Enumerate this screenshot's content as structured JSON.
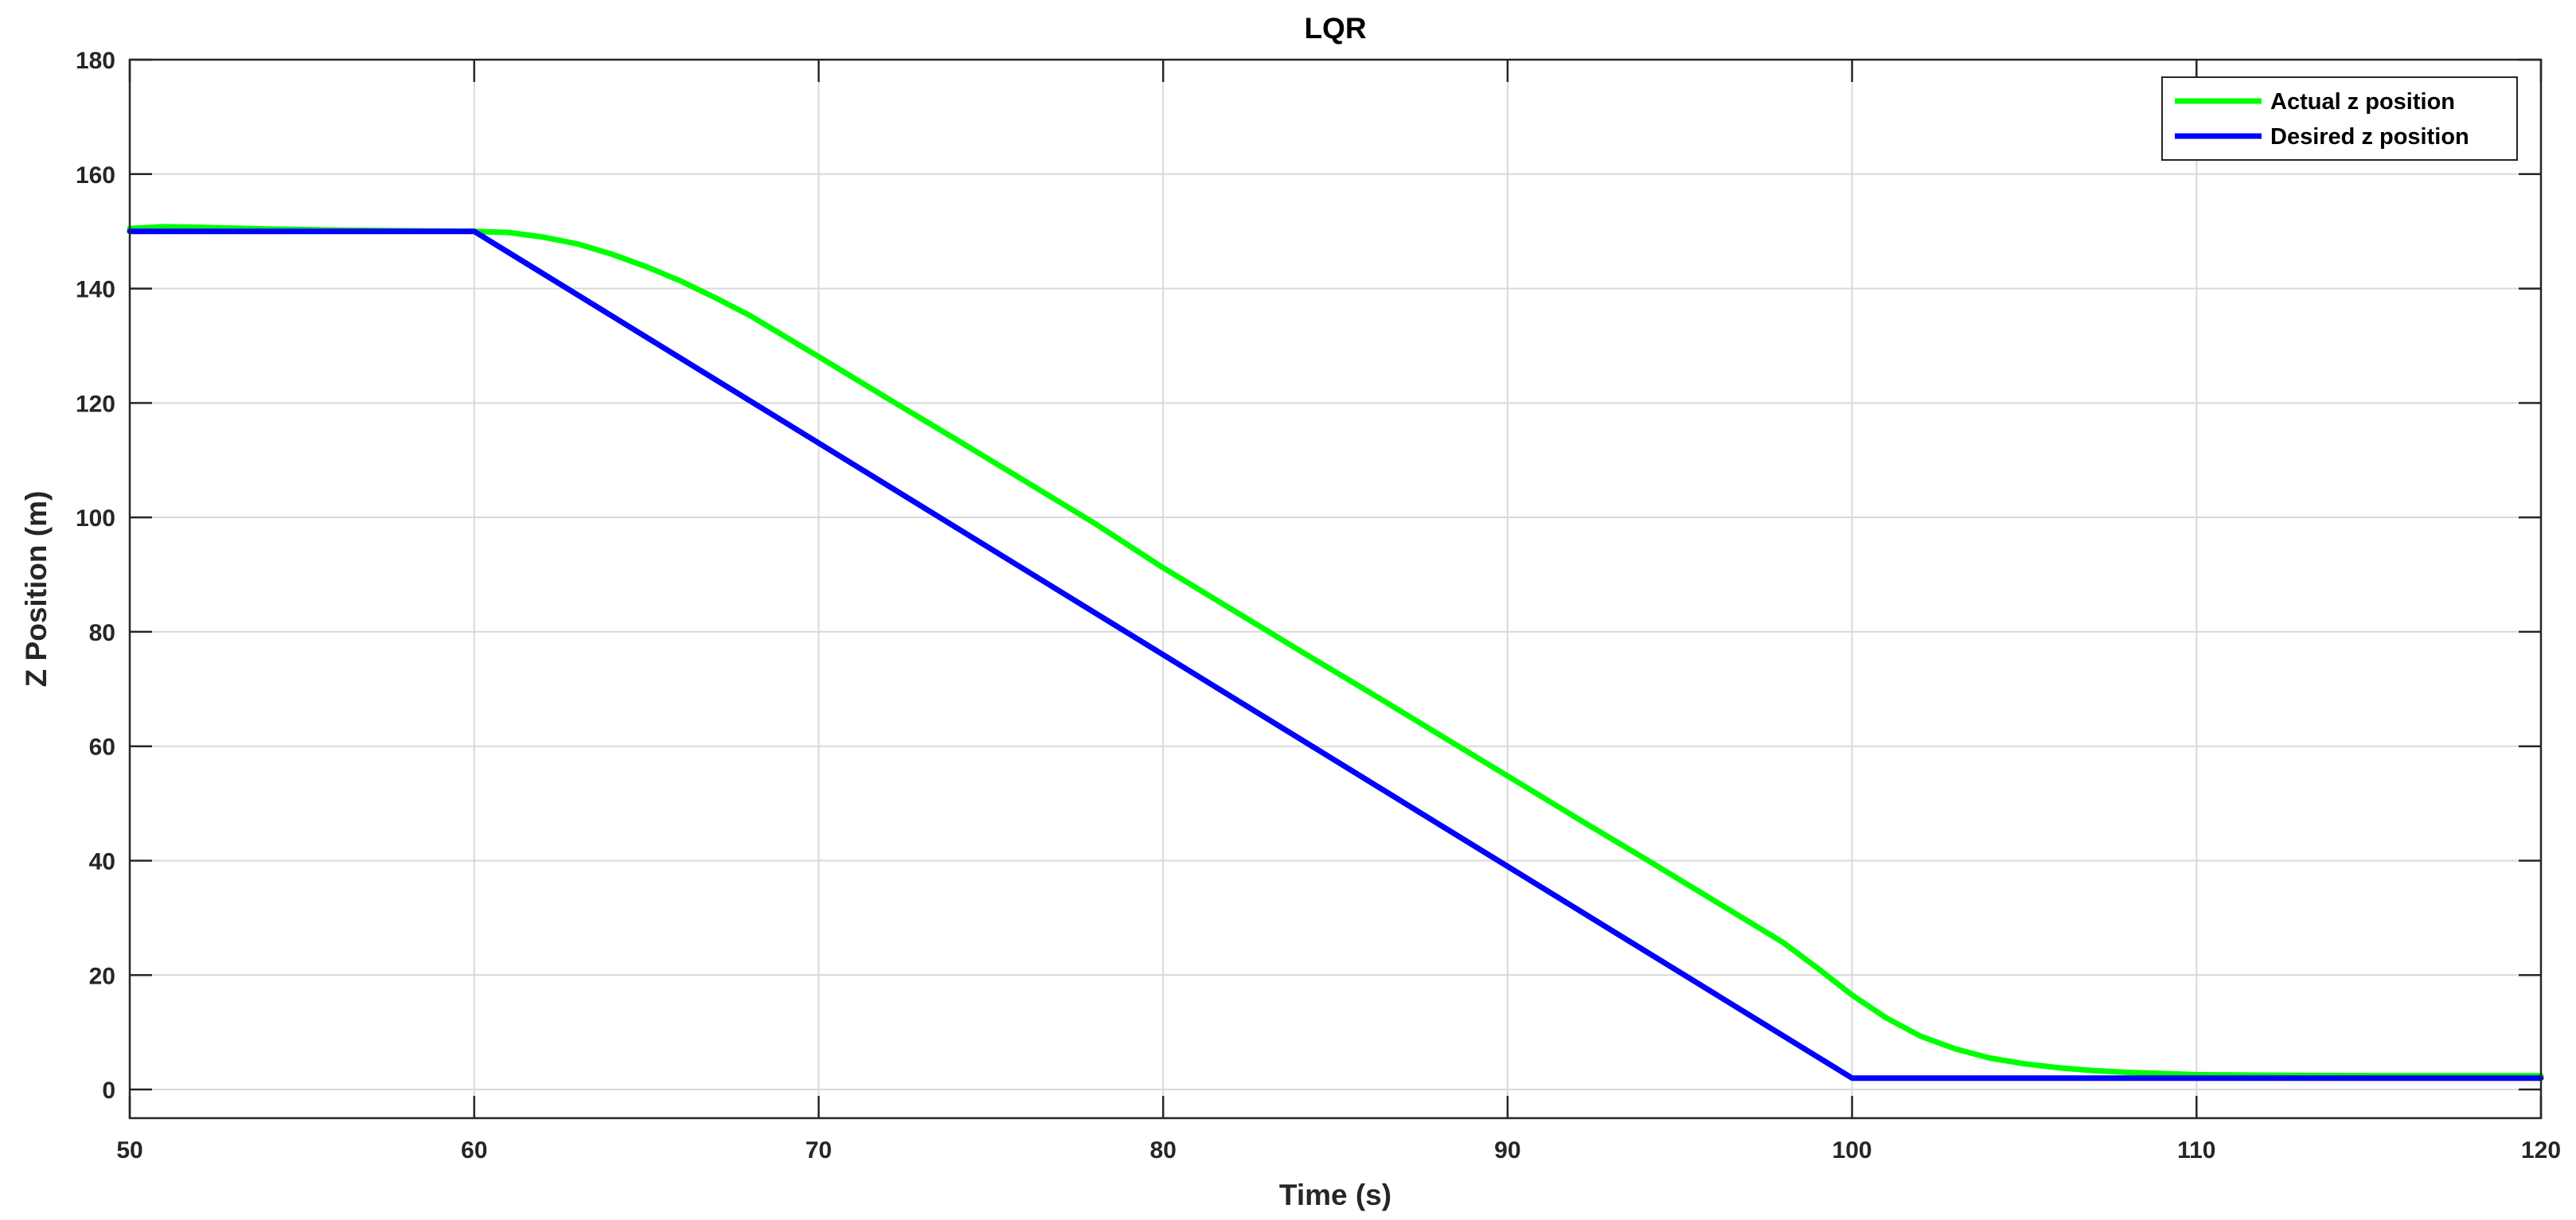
{
  "chart_data": {
    "type": "line",
    "title": "LQR",
    "xlabel": "Time (s)",
    "ylabel": "Z Position (m)",
    "xlim": [
      50,
      120
    ],
    "ylim": [
      -5,
      180
    ],
    "xticks": [
      50,
      60,
      70,
      80,
      90,
      100,
      110,
      120
    ],
    "yticks": [
      0,
      20,
      40,
      60,
      80,
      100,
      120,
      140,
      160,
      180
    ],
    "grid": true,
    "legend_position": "top-right",
    "series": [
      {
        "name": "Actual z position",
        "color": "#00ff00",
        "x": [
          50,
          51,
          52,
          54,
          56,
          58,
          60,
          61,
          62,
          63,
          64,
          65,
          66,
          67,
          68,
          70,
          72,
          74,
          76,
          78,
          80,
          82,
          84,
          86,
          88,
          90,
          92,
          94,
          96,
          98,
          99,
          100,
          101,
          102,
          103,
          104,
          105,
          106,
          107,
          108,
          110,
          112,
          115,
          120
        ],
        "y": [
          150.5,
          150.8,
          150.7,
          150.4,
          150.2,
          150.1,
          150,
          149.8,
          149,
          147.8,
          146,
          143.8,
          141.3,
          138.4,
          135.3,
          128.1,
          120.8,
          113.6,
          106.3,
          99,
          91.2,
          83.9,
          76.6,
          69.4,
          62.1,
          54.8,
          47.5,
          40.3,
          33,
          25.7,
          21.2,
          16.5,
          12.5,
          9.3,
          7.1,
          5.5,
          4.5,
          3.8,
          3.3,
          3,
          2.6,
          2.5,
          2.4,
          2.4
        ]
      },
      {
        "name": "Desired z position",
        "color": "#0000ff",
        "x": [
          50,
          60,
          100,
          120
        ],
        "y": [
          150,
          150,
          2,
          2
        ]
      }
    ]
  }
}
